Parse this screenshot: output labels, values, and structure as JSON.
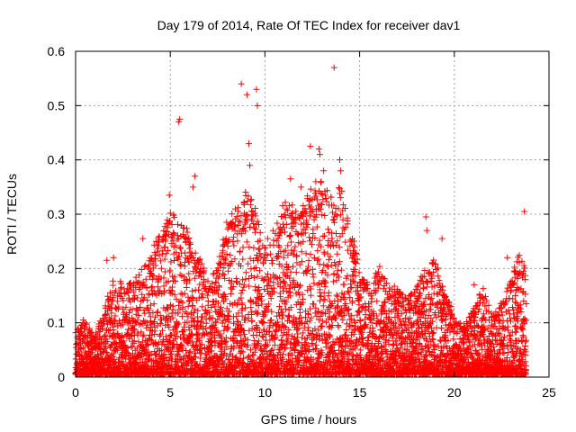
{
  "chart_data": {
    "type": "scatter",
    "title": "Day 179 of 2014, Rate Of TEC Index for receiver dav1",
    "xlabel": "GPS time / hours",
    "ylabel": "ROTI / TECUs",
    "xlim": [
      0,
      25
    ],
    "ylim": [
      0,
      0.6
    ],
    "xticks": [
      "0",
      "5",
      "10",
      "15",
      "20",
      "25"
    ],
    "yticks": [
      "0",
      "0.1",
      "0.2",
      "0.3",
      "0.4",
      "0.5",
      "0.6"
    ],
    "grid": true,
    "marker": "+",
    "color": "#ff0000",
    "series": [
      {
        "name": "ROTI",
        "outliers": [
          [
            5.45,
            0.47
          ],
          [
            5.5,
            0.475
          ],
          [
            8.75,
            0.54
          ],
          [
            9.05,
            0.52
          ],
          [
            9.55,
            0.53
          ],
          [
            9.6,
            0.5
          ],
          [
            13.65,
            0.57
          ],
          [
            9.15,
            0.43
          ],
          [
            9.2,
            0.39
          ],
          [
            12.4,
            0.425
          ],
          [
            12.85,
            0.42
          ],
          [
            12.9,
            0.41
          ],
          [
            13.1,
            0.38
          ],
          [
            13.95,
            0.4
          ],
          [
            14.0,
            0.38
          ],
          [
            6.3,
            0.37
          ],
          [
            6.2,
            0.35
          ],
          [
            4.95,
            0.335
          ],
          [
            11.35,
            0.365
          ],
          [
            11.9,
            0.35
          ],
          [
            18.5,
            0.295
          ],
          [
            18.55,
            0.27
          ],
          [
            23.7,
            0.305
          ],
          [
            19.35,
            0.255
          ],
          [
            3.55,
            0.255
          ],
          [
            1.65,
            0.215
          ],
          [
            2.0,
            0.22
          ],
          [
            22.8,
            0.22
          ],
          [
            21.05,
            0.17
          ],
          [
            0.4,
            0.105
          ]
        ],
        "envelope": {
          "hours": [
            0,
            0.5,
            1,
            1.5,
            2,
            2.5,
            3,
            3.5,
            4,
            4.5,
            5,
            5.5,
            6,
            6.5,
            7,
            7.5,
            8,
            8.5,
            9,
            9.5,
            10,
            10.5,
            11,
            11.5,
            12,
            12.5,
            13,
            13.5,
            14,
            14.5,
            15,
            15.5,
            16,
            16.5,
            17,
            17.5,
            18,
            18.5,
            19,
            19.5,
            20,
            20.5,
            21,
            21.5,
            22,
            22.5,
            23,
            23.5,
            23.8
          ],
          "max_roti": [
            0.08,
            0.1,
            0.07,
            0.12,
            0.18,
            0.17,
            0.17,
            0.19,
            0.22,
            0.26,
            0.3,
            0.28,
            0.26,
            0.22,
            0.17,
            0.2,
            0.28,
            0.3,
            0.33,
            0.3,
            0.25,
            0.26,
            0.32,
            0.3,
            0.3,
            0.34,
            0.35,
            0.32,
            0.35,
            0.27,
            0.2,
            0.16,
            0.2,
            0.17,
            0.16,
            0.14,
            0.16,
            0.2,
            0.21,
            0.15,
            0.11,
            0.09,
            0.12,
            0.16,
            0.11,
            0.14,
            0.17,
            0.24,
            0.2
          ]
        }
      }
    ]
  }
}
